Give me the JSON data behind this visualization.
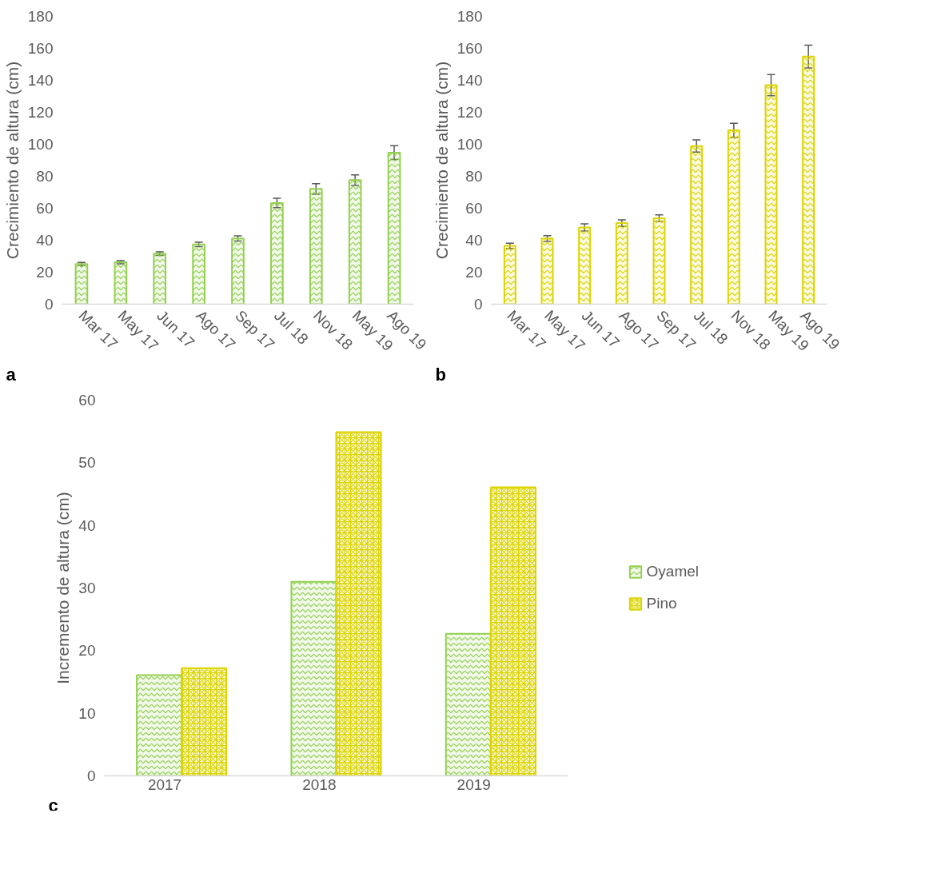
{
  "chart_data": [
    {
      "type": "bar",
      "ylabel": "Crecimiento de altura (cm)",
      "categories": [
        "Mar 17",
        "May 17",
        "Jun 17",
        "Ago 17",
        "Sep 17",
        "Jul 18",
        "Nov 18",
        "May 19",
        "Ago 19"
      ],
      "series": [
        {
          "color": "#92d050",
          "values": [
            25.1,
            26.2,
            31.6,
            37.4,
            41.1,
            63.3,
            72.1,
            77.6,
            94.8
          ],
          "errors": [
            1,
            1,
            1.1,
            1.4,
            1.6,
            2.9,
            3.3,
            3.3,
            4.3
          ]
        }
      ],
      "ylim": [
        0,
        180
      ],
      "yticks": [
        0,
        20,
        40,
        60,
        80,
        100,
        120,
        140,
        160,
        180
      ],
      "annotations": [
        "a"
      ]
    },
    {
      "type": "bar",
      "ylabel": "Crecimiento de altura (cm)",
      "categories": [
        "Mar 17",
        "May 17",
        "Jun 17",
        "Ago 17",
        "Sep 17",
        "Jul 18",
        "Nov 18",
        "May 19",
        "Ago 19"
      ],
      "series": [
        {
          "color": "#dcd400",
          "values": [
            36.5,
            41.1,
            48,
            50.7,
            53.8,
            98.9,
            108.7,
            137,
            154.9
          ],
          "errors": [
            1.6,
            1.8,
            2.2,
            2.1,
            2.1,
            3.8,
            4.4,
            6.6,
            7.1
          ]
        }
      ],
      "ylim": [
        0,
        180
      ],
      "yticks": [
        0,
        20,
        40,
        60,
        80,
        100,
        120,
        140,
        160,
        180
      ],
      "annotations": [
        "b"
      ]
    },
    {
      "type": "bar",
      "ylabel": "Incremento de altura (cm)",
      "categories": [
        "2017",
        "2018",
        "2019"
      ],
      "series": [
        {
          "name": "Oyamel",
          "color": "#92d050",
          "values": [
            16.1,
            31,
            22.7
          ]
        },
        {
          "name": "Pino",
          "color": "#dcd400",
          "values": [
            17.2,
            54.9,
            46.1
          ]
        }
      ],
      "ylim": [
        0,
        60
      ],
      "yticks": [
        0,
        10,
        20,
        30,
        40,
        50,
        60
      ],
      "annotations": [
        "c"
      ],
      "legend": "right"
    }
  ]
}
